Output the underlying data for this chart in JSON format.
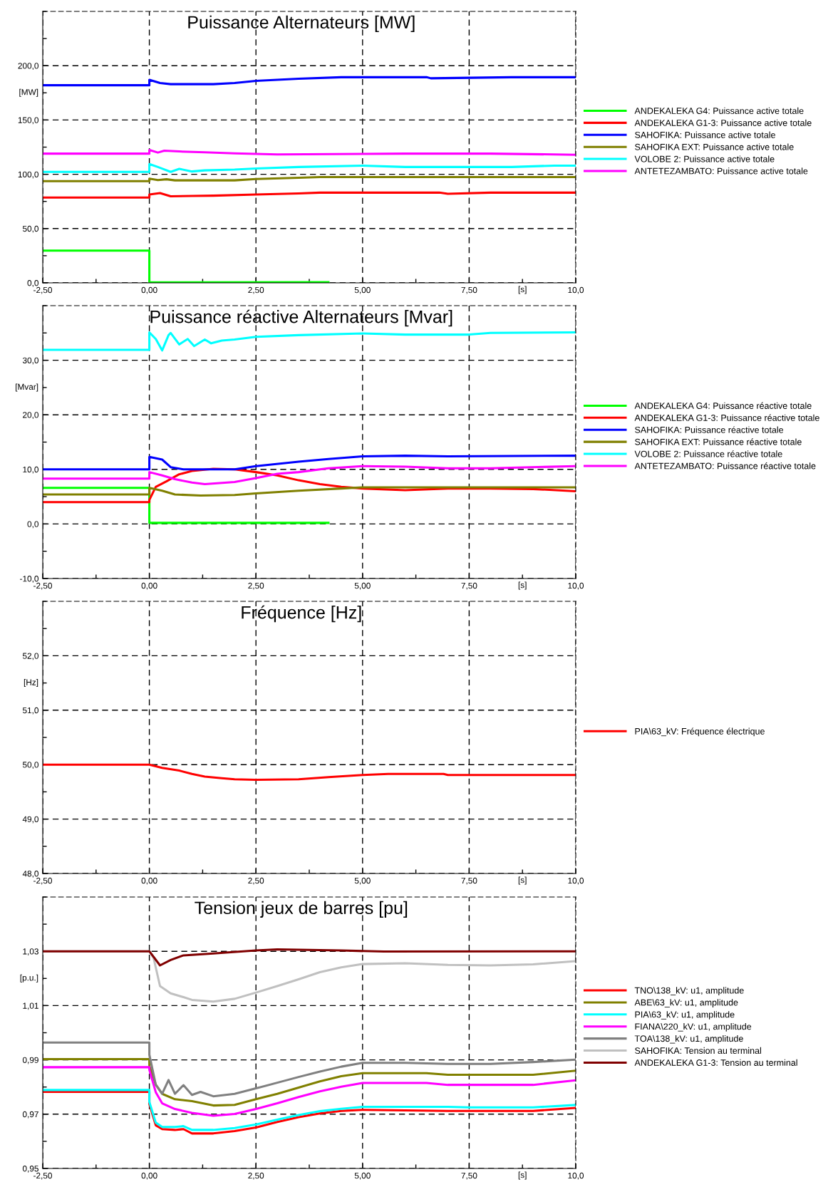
{
  "chart_data": [
    {
      "type": "line",
      "title": "Puissance Alternateurs [MW]",
      "xlabel": "[s]",
      "ylabel": "[MW]",
      "xlim": [
        -2.5,
        10
      ],
      "xticks": [
        {
          "value": -2.5,
          "label": "-2,50"
        },
        {
          "value": -1.25,
          "label": null
        },
        {
          "value": 0,
          "label": "0,00"
        },
        {
          "value": 1.25,
          "label": null
        },
        {
          "value": 2.5,
          "label": "2,50"
        },
        {
          "value": 3.75,
          "label": null
        },
        {
          "value": 5,
          "label": "5,00"
        },
        {
          "value": 6.25,
          "label": null
        },
        {
          "value": 7.5,
          "label": "7,50"
        },
        {
          "value": 8.75,
          "label": null
        },
        {
          "value": 10,
          "label": "10,0"
        }
      ],
      "ylim": [
        0,
        250
      ],
      "yticks": [
        {
          "value": 0,
          "label": "0,0"
        },
        {
          "value": 25,
          "label": null
        },
        {
          "value": 50,
          "label": "50,0"
        },
        {
          "value": 75,
          "label": null
        },
        {
          "value": 100,
          "label": "100,0"
        },
        {
          "value": 125,
          "label": null
        },
        {
          "value": 150,
          "label": "150,0"
        },
        {
          "value": 175,
          "label": null
        },
        {
          "value": 200,
          "label": "200,0"
        },
        {
          "value": 225,
          "label": null
        },
        {
          "value": 250,
          "label": null
        }
      ],
      "grid": true,
      "legend": "right",
      "line_style": "solid",
      "marker": "none",
      "series": [
        {
          "name": "ANDEKALEKA G4: Puissance active totale",
          "color": "#00ff00",
          "x": [
            -2.5,
            0,
            0,
            4.2
          ],
          "values": [
            29.7,
            29.7,
            0.5,
            0.7
          ]
        },
        {
          "name": "ANDEKALEKA G1-3: Puissance active totale",
          "color": "#ff0000",
          "x": [
            -2.5,
            0,
            0,
            0.25,
            0.5,
            1,
            1.5,
            2.5,
            3.5,
            4,
            6.8,
            7,
            8,
            10
          ],
          "values": [
            78.6,
            78.6,
            81.4,
            82.7,
            79.7,
            80,
            80.3,
            81.4,
            82.4,
            83.1,
            83.1,
            82,
            83.1,
            83.1
          ]
        },
        {
          "name": "SAHOFIKA: Puissance active totale",
          "color": "#0000ff",
          "x": [
            -2.5,
            0,
            0,
            0.25,
            0.5,
            1.5,
            2,
            2.5,
            3,
            3.5,
            4.5,
            6.5,
            6.6,
            8.5,
            10
          ],
          "values": [
            182,
            182,
            187,
            184,
            183,
            183,
            184,
            186,
            187,
            188,
            189.4,
            189.4,
            188.4,
            189.4,
            189.4
          ]
        },
        {
          "name": "SAHOFIKA EXT: Puissance active totale",
          "color": "#808000",
          "x": [
            -2.5,
            0,
            0,
            0.2,
            0.4,
            0.6,
            2,
            2.5,
            3.5,
            4,
            10
          ],
          "values": [
            93.7,
            93.7,
            96,
            94.7,
            95.4,
            94.4,
            94.4,
            95.7,
            96.8,
            97.4,
            97.4
          ]
        },
        {
          "name": "VOLOBE 2: Puissance active totale",
          "color": "#00ffff",
          "x": [
            -2.5,
            0,
            0,
            0.2,
            0.5,
            0.7,
            1,
            1.3,
            2,
            2.5,
            3.5,
            5,
            6,
            8.5,
            9.5,
            10
          ],
          "values": [
            102.2,
            102.2,
            109.4,
            106.7,
            102.2,
            105,
            102.6,
            103.6,
            104.3,
            105.3,
            106.7,
            108,
            106.7,
            106.7,
            108,
            108
          ]
        },
        {
          "name": "ANTETEZAMBATO: Puissance active totale",
          "color": "#ff00ff",
          "x": [
            -2.5,
            0,
            0,
            0.2,
            0.35,
            0.7,
            1.3,
            2,
            3,
            6,
            8,
            10
          ],
          "values": [
            119,
            119,
            122.4,
            120,
            121.7,
            121,
            120.3,
            119.3,
            118.3,
            119,
            119,
            118
          ]
        }
      ]
    },
    {
      "type": "line",
      "title": "Puissance réactive Alternateurs [Mvar]",
      "xlabel": "[s]",
      "ylabel": "[Mvar]",
      "xlim": [
        -2.5,
        10
      ],
      "xticks": [
        {
          "value": -2.5,
          "label": "-2,50"
        },
        {
          "value": -1.25,
          "label": null
        },
        {
          "value": 0,
          "label": "0,00"
        },
        {
          "value": 1.25,
          "label": null
        },
        {
          "value": 2.5,
          "label": "2,50"
        },
        {
          "value": 3.75,
          "label": null
        },
        {
          "value": 5,
          "label": "5,00"
        },
        {
          "value": 6.25,
          "label": null
        },
        {
          "value": 7.5,
          "label": "7,50"
        },
        {
          "value": 8.75,
          "label": null
        },
        {
          "value": 10,
          "label": "10,0"
        }
      ],
      "ylim": [
        -10,
        40
      ],
      "yticks": [
        {
          "value": -10,
          "label": "-10,0"
        },
        {
          "value": -5,
          "label": null
        },
        {
          "value": 0,
          "label": "0,0"
        },
        {
          "value": 5,
          "label": null
        },
        {
          "value": 10,
          "label": "10,0"
        },
        {
          "value": 15,
          "label": null
        },
        {
          "value": 20,
          "label": "20,0"
        },
        {
          "value": 25,
          "label": null
        },
        {
          "value": 30,
          "label": "30,0"
        },
        {
          "value": 35,
          "label": null
        },
        {
          "value": 40,
          "label": null
        }
      ],
      "grid": true,
      "legend": "right",
      "line_style": "solid",
      "marker": "none",
      "series": [
        {
          "name": "ANDEKALEKA G4: Puissance réactive totale",
          "color": "#00ff00",
          "x": [
            -2.5,
            0,
            0,
            4.2
          ],
          "values": [
            6.6,
            6.6,
            0.2,
            0.2
          ]
        },
        {
          "name": "ANDEKALEKA G1-3: Puissance réactive totale",
          "color": "#ff0000",
          "x": [
            -2.5,
            0,
            0,
            0.15,
            0.4,
            0.7,
            1,
            1.5,
            2,
            2.5,
            3,
            3.5,
            4,
            4.5,
            5,
            6,
            7,
            8,
            9,
            10
          ],
          "values": [
            4.0,
            4.0,
            4.4,
            6.8,
            7.8,
            9.1,
            9.7,
            10.1,
            10.0,
            9.5,
            8.9,
            8.0,
            7.3,
            6.8,
            6.5,
            6.2,
            6.5,
            6.5,
            6.4,
            6.0
          ]
        },
        {
          "name": "SAHOFIKA: Puissance réactive totale",
          "color": "#0000ff",
          "x": [
            -2.5,
            0,
            0,
            0.3,
            0.5,
            0.8,
            2,
            2.5,
            3.5,
            4.2,
            5,
            6,
            7,
            10
          ],
          "values": [
            10.0,
            10.0,
            12.3,
            11.8,
            10.4,
            10.0,
            10.0,
            10.6,
            11.4,
            11.9,
            12.4,
            12.5,
            12.4,
            12.5
          ]
        },
        {
          "name": "SAHOFIKA EXT: Puissance réactive totale",
          "color": "#808000",
          "x": [
            -2.5,
            0,
            0,
            0.3,
            0.6,
            1.2,
            2,
            2.5,
            3.5,
            4.5,
            5,
            10
          ],
          "values": [
            5.4,
            5.4,
            6.6,
            6.1,
            5.4,
            5.2,
            5.3,
            5.6,
            6.1,
            6.5,
            6.7,
            6.7
          ]
        },
        {
          "name": "VOLOBE 2: Puissance réactive totale",
          "color": "#00ffff",
          "x": [
            -2.5,
            0,
            0,
            0.15,
            0.3,
            0.45,
            0.5,
            0.7,
            0.9,
            1.05,
            1.3,
            1.45,
            1.7,
            2,
            2.5,
            3.5,
            5,
            6,
            7.5,
            8,
            10
          ],
          "values": [
            31.9,
            31.9,
            35.1,
            33.9,
            31.8,
            34.6,
            35.0,
            32.9,
            33.9,
            32.6,
            33.8,
            33.1,
            33.6,
            33.8,
            34.3,
            34.6,
            34.9,
            34.7,
            34.7,
            35.0,
            35.1
          ]
        },
        {
          "name": "ANTETEZAMBATO: Puissance réactive totale",
          "color": "#ff00ff",
          "x": [
            -2.5,
            0,
            0,
            0.3,
            0.6,
            1,
            1.3,
            2,
            2.5,
            3,
            3.5,
            4.2,
            5,
            6,
            7,
            8,
            10
          ],
          "values": [
            8.3,
            8.3,
            9.5,
            8.9,
            8.2,
            7.6,
            7.3,
            7.7,
            8.4,
            9.2,
            9.5,
            10.2,
            10.6,
            10.5,
            10.2,
            10.2,
            10.6
          ]
        }
      ]
    },
    {
      "type": "line",
      "title": "Fréquence [Hz]",
      "xlabel": "[s]",
      "ylabel": "[Hz]",
      "xlim": [
        -2.5,
        10
      ],
      "xticks": [
        {
          "value": -2.5,
          "label": "-2,50"
        },
        {
          "value": -1.25,
          "label": null
        },
        {
          "value": 0,
          "label": "0,00"
        },
        {
          "value": 1.25,
          "label": null
        },
        {
          "value": 2.5,
          "label": "2,50"
        },
        {
          "value": 3.75,
          "label": null
        },
        {
          "value": 5,
          "label": "5,00"
        },
        {
          "value": 6.25,
          "label": null
        },
        {
          "value": 7.5,
          "label": "7,50"
        },
        {
          "value": 8.75,
          "label": null
        },
        {
          "value": 10,
          "label": "10,0"
        }
      ],
      "ylim": [
        48,
        53
      ],
      "yticks": [
        {
          "value": 48,
          "label": "48,0"
        },
        {
          "value": 48.5,
          "label": null
        },
        {
          "value": 49,
          "label": "49,0"
        },
        {
          "value": 49.5,
          "label": null
        },
        {
          "value": 50,
          "label": "50,0"
        },
        {
          "value": 50.5,
          "label": null
        },
        {
          "value": 51,
          "label": "51,0"
        },
        {
          "value": 51.5,
          "label": null
        },
        {
          "value": 52,
          "label": "52,0"
        },
        {
          "value": 52.5,
          "label": null
        },
        {
          "value": 53,
          "label": null
        }
      ],
      "grid": true,
      "legend": "right",
      "line_style": "solid",
      "marker": "none",
      "series": [
        {
          "name": "PIA\\63_kV: Fréquence électrique",
          "color": "#ff0000",
          "x": [
            -2.5,
            0,
            0.3,
            0.7,
            1,
            1.3,
            1.7,
            2,
            2.5,
            3.5,
            4.2,
            5,
            5.6,
            6.9,
            7,
            10
          ],
          "values": [
            50.0,
            50.0,
            49.94,
            49.89,
            49.83,
            49.78,
            49.75,
            49.73,
            49.72,
            49.73,
            49.77,
            49.81,
            49.83,
            49.83,
            49.81,
            49.81
          ]
        }
      ]
    },
    {
      "type": "line",
      "title": "Tension jeux de barres [pu]",
      "xlabel": "[s]",
      "ylabel": "[p.u.]",
      "xlim": [
        -2.5,
        10
      ],
      "xticks": [
        {
          "value": -2.5,
          "label": "-2,50"
        },
        {
          "value": -1.25,
          "label": null
        },
        {
          "value": 0,
          "label": "0,00"
        },
        {
          "value": 1.25,
          "label": null
        },
        {
          "value": 2.5,
          "label": "2,50"
        },
        {
          "value": 3.75,
          "label": null
        },
        {
          "value": 5,
          "label": "5,00"
        },
        {
          "value": 6.25,
          "label": null
        },
        {
          "value": 7.5,
          "label": "7,50"
        },
        {
          "value": 8.75,
          "label": null
        },
        {
          "value": 10,
          "label": "10,0"
        }
      ],
      "ylim": [
        0.95,
        1.05
      ],
      "yticks": [
        {
          "value": 0.95,
          "label": "0,95"
        },
        {
          "value": 0.96,
          "label": null
        },
        {
          "value": 0.97,
          "label": "0,97"
        },
        {
          "value": 0.98,
          "label": null
        },
        {
          "value": 0.99,
          "label": "0,99"
        },
        {
          "value": 1.0,
          "label": null
        },
        {
          "value": 1.01,
          "label": "1,01"
        },
        {
          "value": 1.02,
          "label": null
        },
        {
          "value": 1.03,
          "label": "1,03"
        },
        {
          "value": 1.04,
          "label": null
        },
        {
          "value": 1.05,
          "label": null
        }
      ],
      "grid": true,
      "legend": "right",
      "line_style": "solid",
      "marker": "none",
      "series": [
        {
          "name": "TNO\\138_kV: u1, amplitude",
          "color": "#ff0000",
          "x": [
            -2.5,
            0,
            0,
            0.15,
            0.3,
            0.6,
            0.8,
            1,
            1.5,
            2,
            2.5,
            3,
            3.5,
            4,
            4.5,
            5,
            7,
            9,
            10
          ],
          "values": [
            0.9782,
            0.9782,
            0.9738,
            0.9659,
            0.9645,
            0.9642,
            0.9645,
            0.9629,
            0.9629,
            0.9638,
            0.9651,
            0.9671,
            0.9689,
            0.9703,
            0.9712,
            0.9716,
            0.9712,
            0.9712,
            0.9723
          ]
        },
        {
          "name": "ABE\\63_kV: u1, amplitude",
          "color": "#808000",
          "x": [
            -2.5,
            0,
            0,
            0.15,
            0.3,
            0.6,
            1,
            1.5,
            2,
            2.5,
            3,
            3.5,
            4,
            4.5,
            5,
            6.5,
            7,
            9,
            10
          ],
          "values": [
            0.9903,
            0.9903,
            0.9878,
            0.9809,
            0.9775,
            0.9755,
            0.9748,
            0.9732,
            0.9734,
            0.9755,
            0.9775,
            0.9798,
            0.9821,
            0.984,
            0.9851,
            0.9851,
            0.9845,
            0.9845,
            0.986
          ]
        },
        {
          "name": "PIA\\63_kV: u1, amplitude",
          "color": "#00ffff",
          "x": [
            -2.5,
            0,
            0,
            0.15,
            0.3,
            0.6,
            0.8,
            1,
            1.5,
            2,
            2.5,
            3,
            3.5,
            4,
            4.5,
            5,
            7,
            7.5,
            9,
            10
          ],
          "values": [
            0.9789,
            0.9789,
            0.9745,
            0.9669,
            0.9653,
            0.9653,
            0.9656,
            0.9642,
            0.9642,
            0.9649,
            0.9662,
            0.968,
            0.9697,
            0.9711,
            0.972,
            0.9727,
            0.9727,
            0.9725,
            0.9725,
            0.9734
          ]
        },
        {
          "name": "FIANA\\220_kV: u1, amplitude",
          "color": "#ff00ff",
          "x": [
            -2.5,
            0,
            0,
            0.15,
            0.3,
            0.6,
            1,
            1.5,
            2,
            2.5,
            3,
            3.5,
            4,
            4.5,
            5,
            6.5,
            7,
            9,
            10
          ],
          "values": [
            0.9873,
            0.9873,
            0.9863,
            0.9781,
            0.974,
            0.9719,
            0.9705,
            0.9694,
            0.9701,
            0.9719,
            0.974,
            0.9763,
            0.9784,
            0.9801,
            0.9815,
            0.9815,
            0.9808,
            0.9808,
            0.9825
          ]
        },
        {
          "name": "TOA\\138_kV: u1, amplitude",
          "color": "#808080",
          "x": [
            -2.5,
            0,
            0,
            0.15,
            0.3,
            0.45,
            0.6,
            0.8,
            1,
            1.2,
            1.5,
            2,
            2.5,
            3,
            3.5,
            4,
            4.5,
            5,
            6,
            7,
            8,
            9,
            10
          ],
          "values": [
            0.9964,
            0.9964,
            0.9919,
            0.9809,
            0.9775,
            0.9826,
            0.9775,
            0.9807,
            0.9771,
            0.9782,
            0.9766,
            0.9775,
            0.9795,
            0.9816,
            0.9837,
            0.9857,
            0.9875,
            0.9889,
            0.9889,
            0.9885,
            0.9885,
            0.9892,
            0.9901
          ]
        },
        {
          "name": "SAHOFIKA: Tension au terminal",
          "color": "#c0c0c0",
          "x": [
            -2.5,
            0,
            0.1,
            0.25,
            0.5,
            0.8,
            1,
            1.5,
            2,
            2.5,
            3,
            3.5,
            4,
            4.5,
            5,
            6,
            7,
            8,
            9,
            10
          ],
          "values": [
            1.03,
            1.03,
            1.0275,
            1.0172,
            1.0145,
            1.0131,
            1.0121,
            1.0115,
            1.0125,
            1.0148,
            1.0172,
            1.0197,
            1.0223,
            1.0241,
            1.0253,
            1.0256,
            1.025,
            1.0248,
            1.0252,
            1.0264
          ]
        },
        {
          "name": "ANDEKALEKA G1-3: Tension au terminal",
          "color": "#800000",
          "x": [
            -2.5,
            0,
            0.25,
            0.5,
            0.8,
            1.5,
            2.5,
            3,
            4.5,
            5.5,
            10
          ],
          "values": [
            1.03,
            1.03,
            1.0248,
            1.0268,
            1.0285,
            1.0292,
            1.0303,
            1.0307,
            1.0303,
            1.0299,
            1.03
          ]
        }
      ]
    }
  ]
}
